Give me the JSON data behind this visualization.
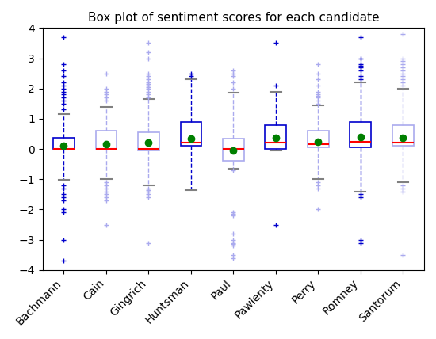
{
  "title": "Box plot of sentiment scores for each candidate",
  "candidates": [
    "Bachmann",
    "Cain",
    "Gingrich",
    "Huntsman",
    "Paul",
    "Pawlenty",
    "Perry",
    "Romney",
    "Santorum"
  ],
  "ylim": [
    -4,
    4
  ],
  "figsize": [
    5.5,
    4.28
  ],
  "dpi": 100,
  "box_colors": [
    "#0000cc",
    "#aaaaee",
    "#aaaaee",
    "#0000cc",
    "#aaaaee",
    "#0000cc",
    "#aaaaee",
    "#0000cc",
    "#aaaaee"
  ],
  "stats": [
    {
      "med": 0.0,
      "q1": 0.0,
      "q3": 0.38,
      "whislo": -1.02,
      "whishi": 1.15,
      "mean": 0.12,
      "fliers": [
        1.3,
        1.5,
        1.6,
        1.7,
        1.8,
        1.9,
        2.0,
        2.1,
        2.2,
        2.4,
        2.6,
        2.8,
        3.7,
        -1.2,
        -1.3,
        -1.5,
        -1.6,
        -1.7,
        -2.0,
        -2.1,
        -3.0,
        -3.7
      ]
    },
    {
      "med": 0.0,
      "q1": 0.0,
      "q3": 0.6,
      "whislo": -1.0,
      "whishi": 1.4,
      "mean": 0.15,
      "fliers": [
        1.6,
        1.7,
        1.8,
        1.9,
        2.0,
        2.5,
        -1.1,
        -1.2,
        -1.3,
        -1.4,
        -1.5,
        -1.6,
        -1.7,
        -2.5
      ]
    },
    {
      "med": 0.0,
      "q1": -0.05,
      "q3": 0.55,
      "whislo": -1.2,
      "whishi": 1.65,
      "mean": 0.2,
      "fliers": [
        1.7,
        1.8,
        1.9,
        2.0,
        2.05,
        2.1,
        2.15,
        2.2,
        2.3,
        2.4,
        2.5,
        3.0,
        3.2,
        3.5,
        -1.3,
        -1.35,
        -1.4,
        -1.5,
        -1.6,
        -3.1
      ]
    },
    {
      "med": 0.22,
      "q1": 0.1,
      "q3": 0.9,
      "whislo": -1.35,
      "whishi": 2.3,
      "mean": 0.35,
      "fliers": [
        2.4,
        2.5
      ]
    },
    {
      "med": 0.0,
      "q1": -0.4,
      "q3": 0.35,
      "whislo": -0.65,
      "whishi": 1.85,
      "mean": -0.05,
      "fliers": [
        2.0,
        2.2,
        2.4,
        2.5,
        2.6,
        -0.7,
        -2.1,
        -2.15,
        -2.2,
        -2.8,
        -3.0,
        -3.1,
        -3.15,
        -3.2,
        -3.5,
        -3.6
      ]
    },
    {
      "med": 0.22,
      "q1": 0.0,
      "q3": 0.8,
      "whislo": -0.05,
      "whishi": 1.9,
      "mean": 0.38,
      "fliers": [
        2.1,
        3.5,
        -2.5
      ]
    },
    {
      "med": 0.15,
      "q1": 0.05,
      "q3": 0.6,
      "whislo": -1.0,
      "whishi": 1.45,
      "mean": 0.25,
      "fliers": [
        1.5,
        1.6,
        1.7,
        1.75,
        1.8,
        1.9,
        2.1,
        2.3,
        2.5,
        2.8,
        -1.1,
        -1.2,
        -1.3,
        -2.0
      ]
    },
    {
      "med": 0.25,
      "q1": 0.05,
      "q3": 0.9,
      "whislo": -1.4,
      "whishi": 2.2,
      "mean": 0.4,
      "fliers": [
        2.3,
        2.4,
        2.6,
        2.7,
        2.75,
        2.8,
        3.0,
        3.7,
        -1.5,
        -1.6,
        -3.0,
        -3.1
      ]
    },
    {
      "med": 0.2,
      "q1": 0.1,
      "q3": 0.8,
      "whislo": -1.1,
      "whishi": 2.0,
      "mean": 0.38,
      "fliers": [
        2.1,
        2.2,
        2.3,
        2.4,
        2.5,
        2.6,
        2.7,
        2.8,
        2.9,
        3.0,
        3.8,
        -1.2,
        -1.3,
        -1.4,
        -3.5
      ]
    }
  ]
}
